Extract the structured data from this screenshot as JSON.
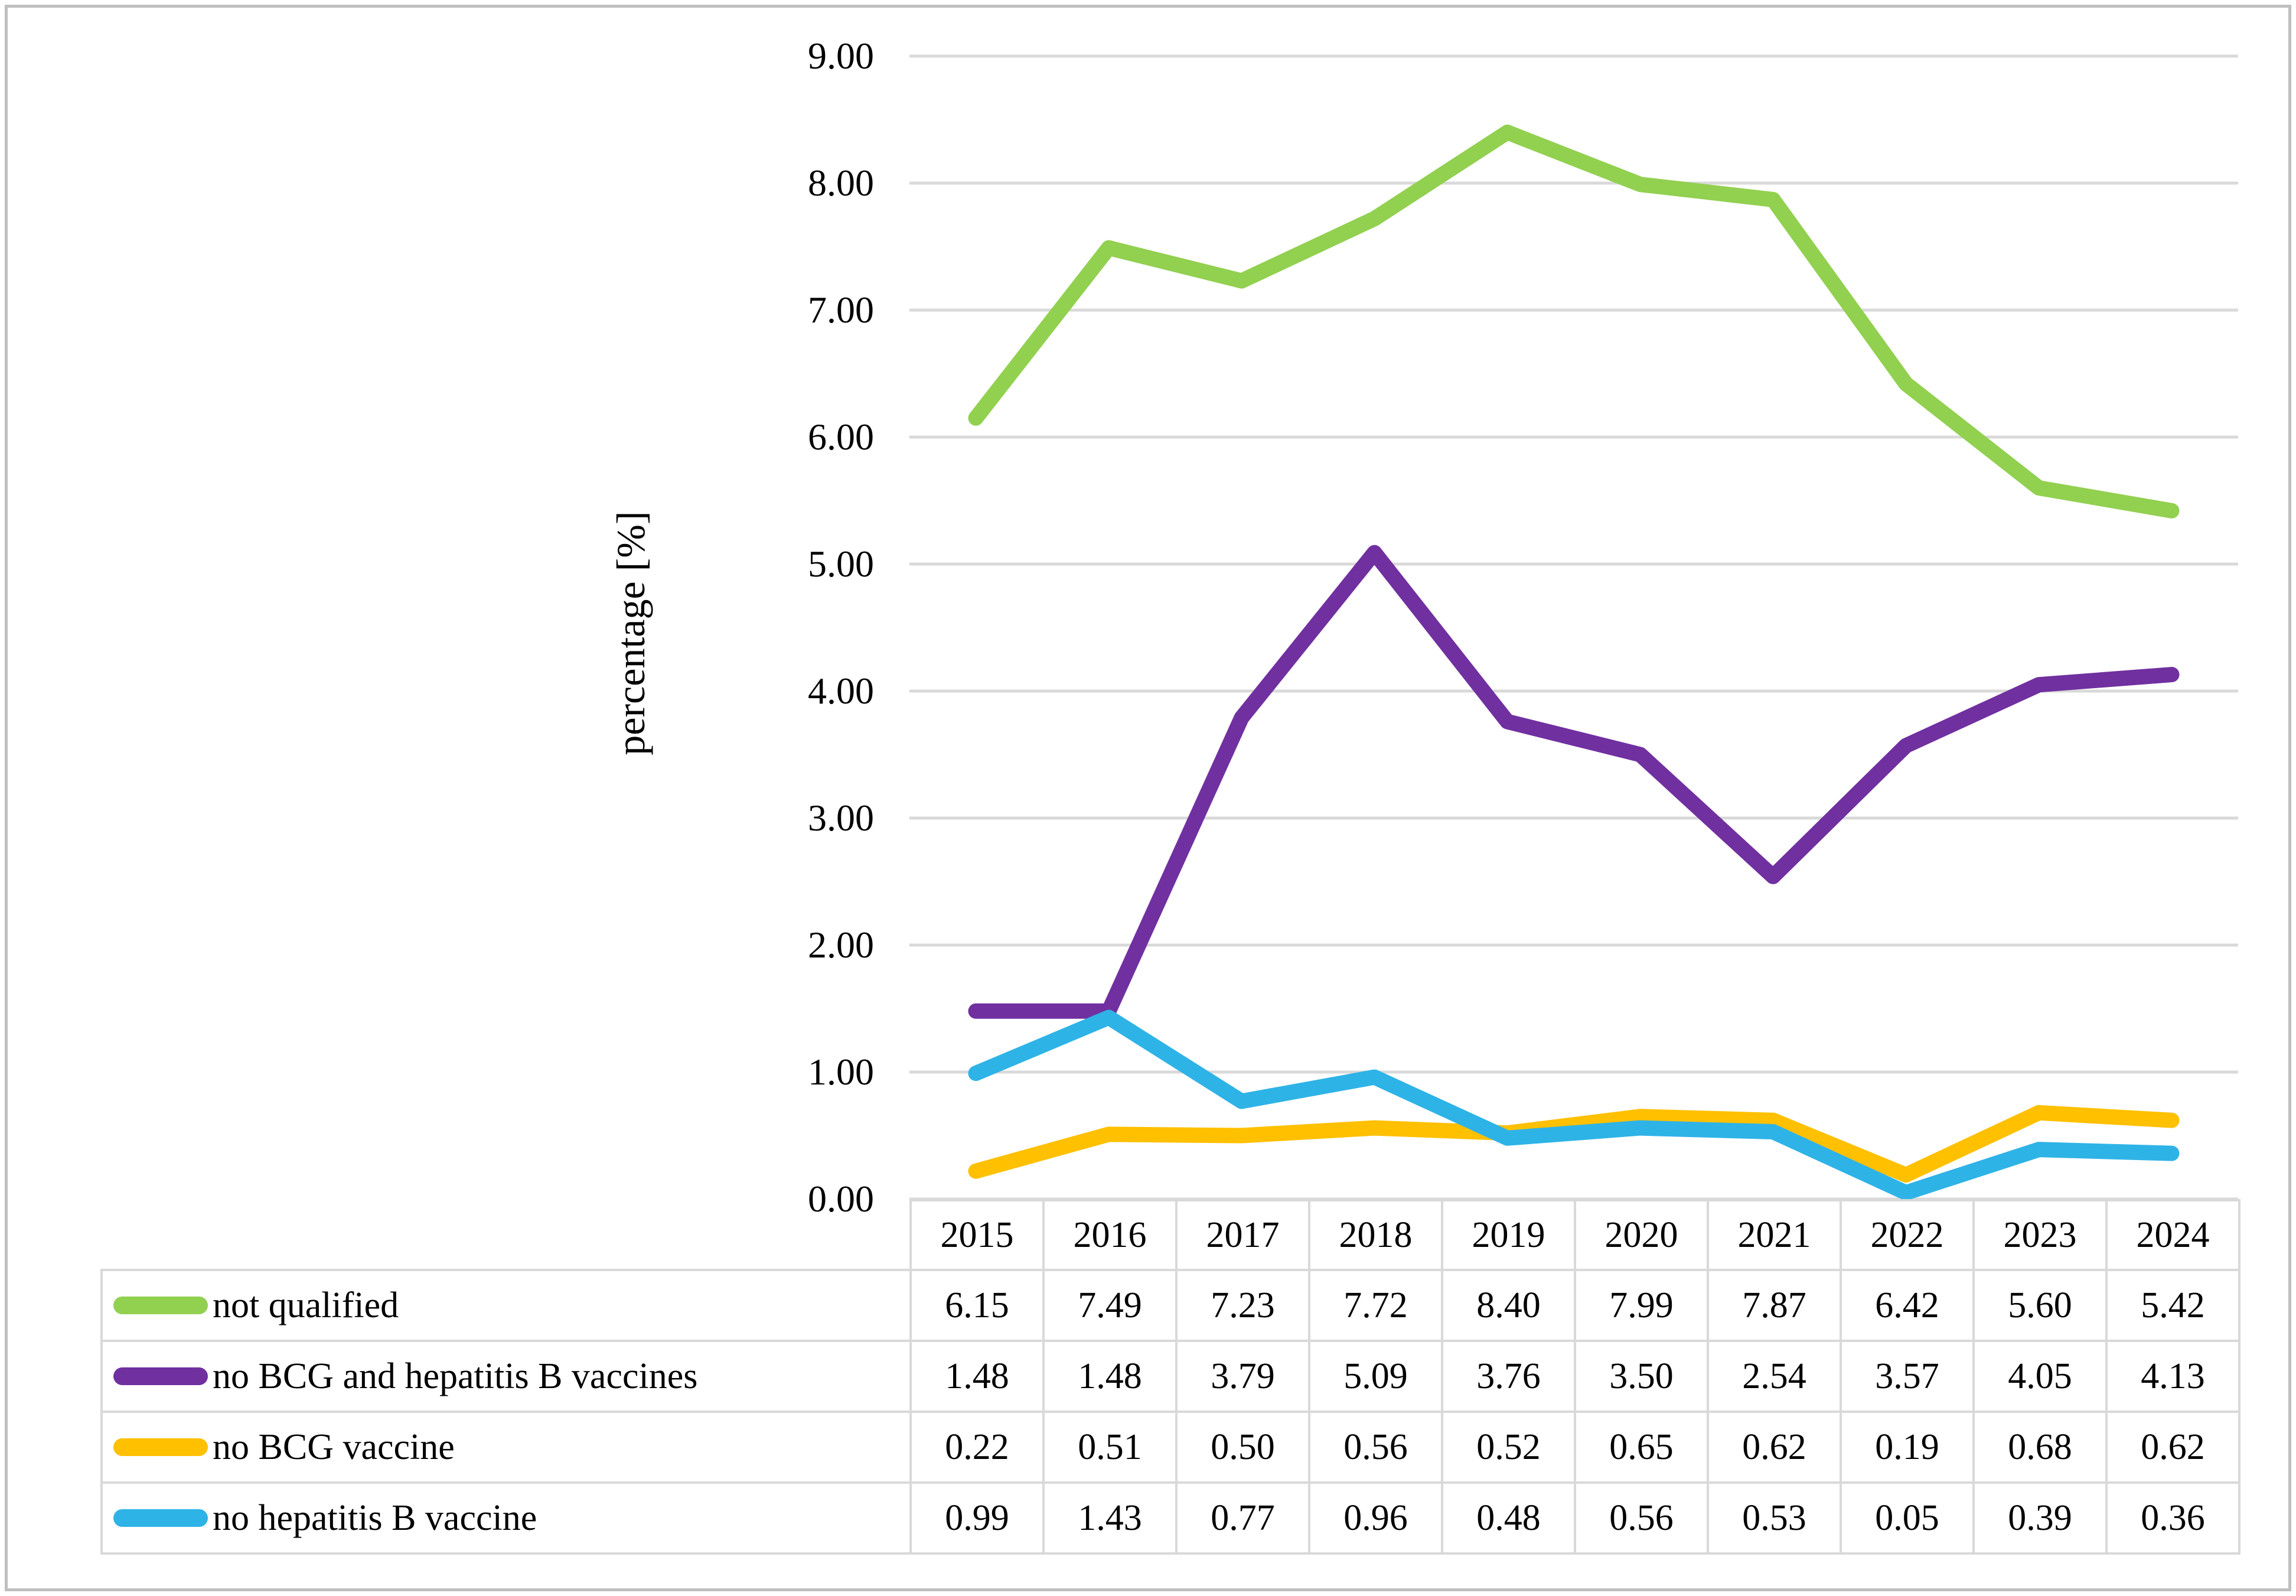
{
  "figure": {
    "border_color": "#bfbfbf",
    "background": "#ffffff",
    "gridline_color": "#d9d9d9",
    "table_border_color": "#d9d9d9",
    "text_color": "#000000"
  },
  "chart_data": {
    "type": "line",
    "title": "",
    "xlabel": "",
    "ylabel": "percentage [%]",
    "ylim": [
      0,
      9
    ],
    "ytick_step": 1,
    "yticks": [
      "9.00",
      "8.00",
      "7.00",
      "6.00",
      "5.00",
      "4.00",
      "3.00",
      "2.00",
      "1.00",
      "0.00"
    ],
    "grid": "horizontal",
    "legend_position": "table-left-column",
    "categories": [
      "2015",
      "2016",
      "2017",
      "2018",
      "2019",
      "2020",
      "2021",
      "2022",
      "2023",
      "2024"
    ],
    "series": [
      {
        "name": "not qualified",
        "color": "#92D050",
        "values": [
          "6.15",
          "7.49",
          "7.23",
          "7.72",
          "8.40",
          "7.99",
          "7.87",
          "6.42",
          "5.60",
          "5.42"
        ]
      },
      {
        "name": "no BCG and hepatitis B vaccines",
        "color": "#7030A0",
        "values": [
          "1.48",
          "1.48",
          "3.79",
          "5.09",
          "3.76",
          "3.50",
          "2.54",
          "3.57",
          "4.05",
          "4.13"
        ]
      },
      {
        "name": "no BCG vaccine",
        "color": "#FFC000",
        "values": [
          "0.22",
          "0.51",
          "0.50",
          "0.56",
          "0.52",
          "0.65",
          "0.62",
          "0.19",
          "0.68",
          "0.62"
        ]
      },
      {
        "name": "no hepatitis B vaccine",
        "color": "#2EB3E7",
        "values": [
          "0.99",
          "1.43",
          "0.77",
          "0.96",
          "0.48",
          "0.56",
          "0.53",
          "0.05",
          "0.39",
          "0.36"
        ]
      }
    ]
  }
}
